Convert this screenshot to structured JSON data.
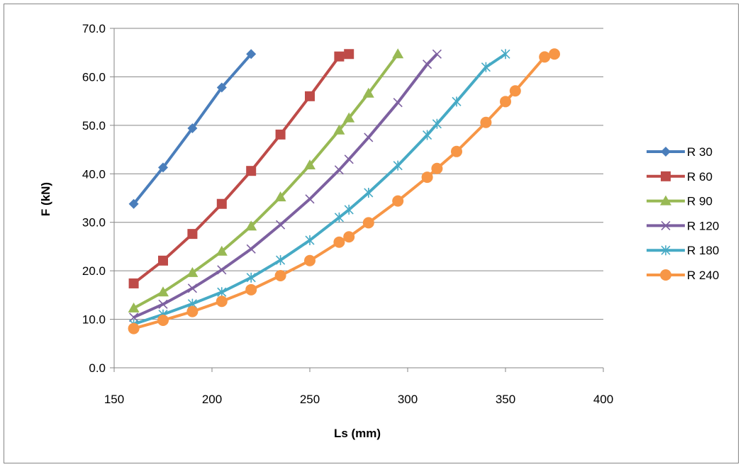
{
  "chart_data": {
    "type": "line",
    "title": "",
    "xlabel": "Ls (mm)",
    "ylabel": "F (kN)",
    "xlim": [
      150,
      400
    ],
    "ylim": [
      0,
      70
    ],
    "xticks": [
      "150",
      "200",
      "250",
      "300",
      "350",
      "400"
    ],
    "yticks": [
      "0.0",
      "10.0",
      "20.0",
      "30.0",
      "40.0",
      "50.0",
      "60.0",
      "70.0"
    ],
    "grid": "horizontal",
    "legend_position": "right",
    "series": [
      {
        "name": "R 30",
        "color": "#4a7ebb",
        "marker": "diamond",
        "x": [
          160,
          175,
          190,
          205,
          220
        ],
        "y": [
          33.8,
          41.3,
          49.4,
          57.8,
          64.7
        ]
      },
      {
        "name": "R 60",
        "color": "#be4b48",
        "marker": "square",
        "x": [
          160,
          175,
          190,
          205,
          220,
          235,
          250,
          265,
          270
        ],
        "y": [
          17.4,
          22.1,
          27.6,
          33.8,
          40.6,
          48.1,
          56.0,
          64.2,
          64.7
        ]
      },
      {
        "name": "R 90",
        "color": "#98b954",
        "marker": "triangle",
        "x": [
          160,
          175,
          190,
          205,
          220,
          235,
          250,
          265,
          270,
          280,
          295
        ],
        "y": [
          12.3,
          15.6,
          19.6,
          24.0,
          29.2,
          35.2,
          41.8,
          49.0,
          51.5,
          56.6,
          64.7
        ]
      },
      {
        "name": "R 120",
        "color": "#7d60a0",
        "marker": "x",
        "x": [
          160,
          175,
          190,
          205,
          220,
          235,
          250,
          265,
          270,
          280,
          295,
          310,
          315
        ],
        "y": [
          10.4,
          13.1,
          16.4,
          20.2,
          24.5,
          29.5,
          34.8,
          40.8,
          43.0,
          47.5,
          54.7,
          62.6,
          64.7
        ]
      },
      {
        "name": "R 180",
        "color": "#46aac5",
        "marker": "star",
        "x": [
          160,
          175,
          190,
          205,
          220,
          235,
          250,
          265,
          270,
          280,
          295,
          310,
          315,
          325,
          340,
          350
        ],
        "y": [
          9.0,
          11.0,
          13.2,
          15.6,
          18.6,
          22.2,
          26.3,
          31.0,
          32.6,
          36.1,
          41.7,
          48.0,
          50.3,
          54.9,
          62.0,
          64.7
        ]
      },
      {
        "name": "R 240",
        "color": "#f79646",
        "marker": "circle",
        "x": [
          160,
          175,
          190,
          205,
          220,
          235,
          250,
          265,
          270,
          280,
          295,
          310,
          315,
          325,
          340,
          350,
          355,
          370,
          375
        ],
        "y": [
          8.1,
          9.8,
          11.6,
          13.7,
          16.1,
          19.0,
          22.1,
          25.9,
          27.0,
          29.9,
          34.4,
          39.3,
          41.1,
          44.6,
          50.6,
          54.9,
          57.1,
          64.1,
          64.7
        ]
      }
    ]
  }
}
